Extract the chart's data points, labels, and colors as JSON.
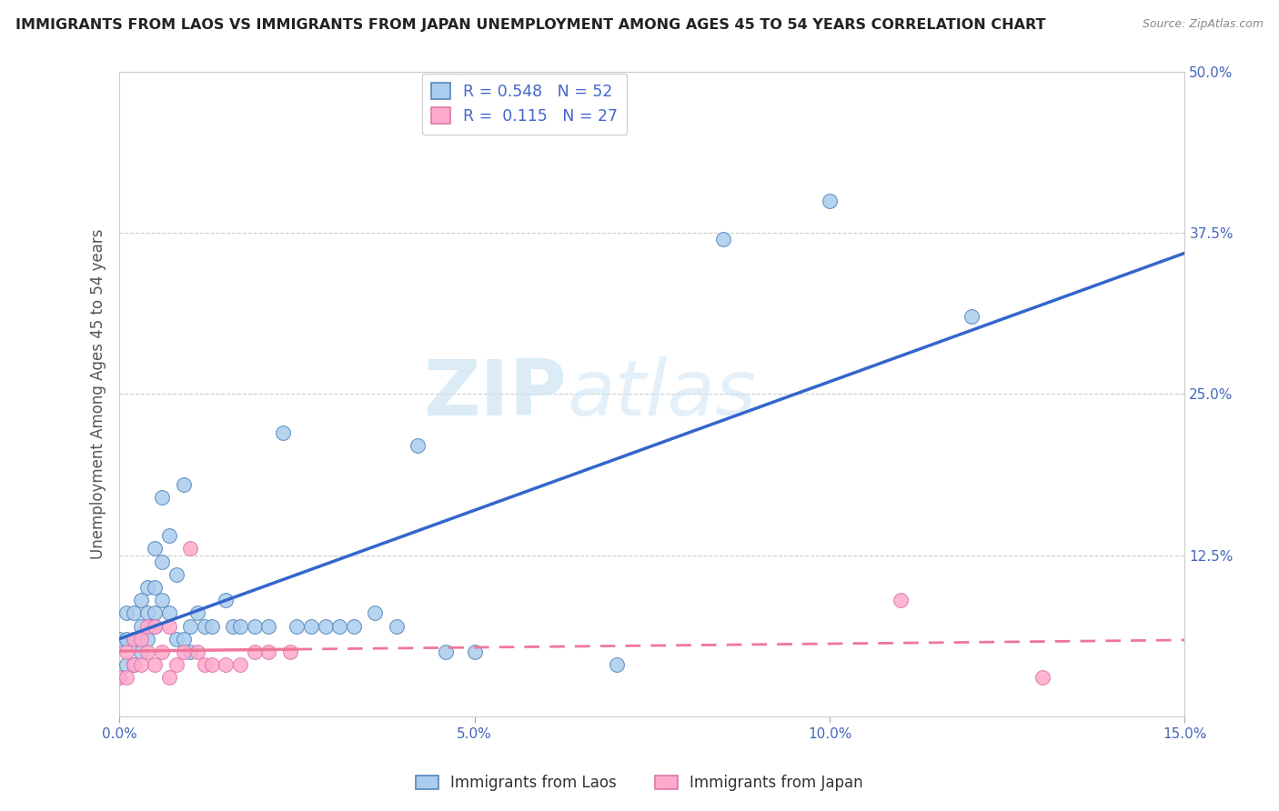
{
  "title": "IMMIGRANTS FROM LAOS VS IMMIGRANTS FROM JAPAN UNEMPLOYMENT AMONG AGES 45 TO 54 YEARS CORRELATION CHART",
  "source": "Source: ZipAtlas.com",
  "ylabel": "Unemployment Among Ages 45 to 54 years",
  "xlim": [
    0.0,
    0.15
  ],
  "ylim": [
    0.0,
    0.5
  ],
  "xticks": [
    0.0,
    0.05,
    0.1,
    0.15
  ],
  "yticks": [
    0.0,
    0.125,
    0.25,
    0.375,
    0.5
  ],
  "xtick_labels": [
    "0.0%",
    "5.0%",
    "10.0%",
    "15.0%"
  ],
  "ytick_labels": [
    "",
    "12.5%",
    "25.0%",
    "37.5%",
    "50.0%"
  ],
  "laos_scatter_color": "#aaccee",
  "laos_scatter_edge": "#5588bb",
  "japan_scatter_color": "#ffaacc",
  "japan_scatter_edge": "#dd77aa",
  "laos_line_color": "#3366cc",
  "japan_line_color": "#ee7799",
  "legend_R_laos": "0.548",
  "legend_N_laos": "52",
  "legend_R_japan": "0.115",
  "legend_N_japan": "27",
  "watermark_zip": "ZIP",
  "watermark_atlas": "atlas",
  "background_color": "#ffffff",
  "laos_x": [
    0.0,
    0.0,
    0.001,
    0.001,
    0.001,
    0.002,
    0.002,
    0.002,
    0.003,
    0.003,
    0.003,
    0.004,
    0.004,
    0.004,
    0.005,
    0.005,
    0.005,
    0.005,
    0.006,
    0.006,
    0.006,
    0.007,
    0.007,
    0.008,
    0.008,
    0.009,
    0.009,
    0.01,
    0.01,
    0.011,
    0.012,
    0.013,
    0.015,
    0.016,
    0.017,
    0.019,
    0.021,
    0.023,
    0.025,
    0.027,
    0.029,
    0.031,
    0.033,
    0.036,
    0.039,
    0.042,
    0.046,
    0.05,
    0.07,
    0.085,
    0.1,
    0.12
  ],
  "laos_y": [
    0.03,
    0.06,
    0.04,
    0.06,
    0.08,
    0.04,
    0.06,
    0.08,
    0.05,
    0.07,
    0.09,
    0.06,
    0.08,
    0.1,
    0.08,
    0.1,
    0.13,
    0.07,
    0.09,
    0.12,
    0.17,
    0.08,
    0.14,
    0.06,
    0.11,
    0.06,
    0.18,
    0.05,
    0.07,
    0.08,
    0.07,
    0.07,
    0.09,
    0.07,
    0.07,
    0.07,
    0.07,
    0.22,
    0.07,
    0.07,
    0.07,
    0.07,
    0.07,
    0.08,
    0.07,
    0.21,
    0.05,
    0.05,
    0.04,
    0.37,
    0.4,
    0.31
  ],
  "japan_x": [
    0.0,
    0.001,
    0.001,
    0.002,
    0.002,
    0.003,
    0.003,
    0.004,
    0.004,
    0.005,
    0.005,
    0.006,
    0.007,
    0.007,
    0.008,
    0.009,
    0.01,
    0.011,
    0.012,
    0.013,
    0.015,
    0.017,
    0.019,
    0.021,
    0.024,
    0.11,
    0.13
  ],
  "japan_y": [
    0.03,
    0.03,
    0.05,
    0.04,
    0.06,
    0.04,
    0.06,
    0.05,
    0.07,
    0.04,
    0.07,
    0.05,
    0.03,
    0.07,
    0.04,
    0.05,
    0.13,
    0.05,
    0.04,
    0.04,
    0.04,
    0.04,
    0.05,
    0.05,
    0.05,
    0.09,
    0.03
  ],
  "japan_solid_xlim": 0.03,
  "japan_dash_xlim": 0.15
}
